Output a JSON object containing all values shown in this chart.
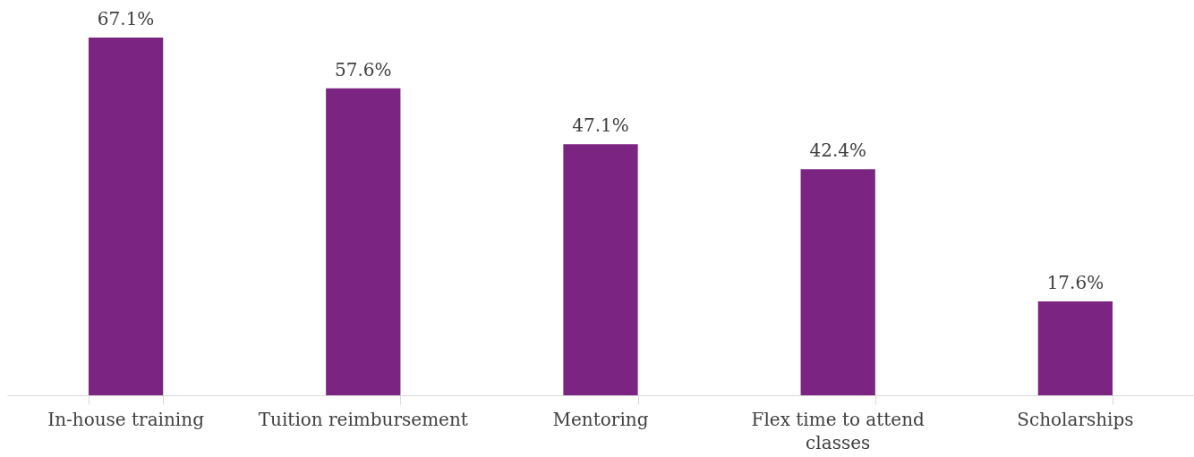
{
  "chart_data": {
    "type": "bar",
    "categories": [
      "In-house training",
      "Tuition reimbursement",
      "Mentoring",
      "Flex time to attend classes",
      "Scholarships"
    ],
    "values": [
      67.1,
      57.6,
      47.1,
      42.4,
      17.6
    ],
    "value_labels": [
      "67.1%",
      "57.6%",
      "47.1%",
      "42.4%",
      "17.6%"
    ],
    "color": "#7b2481"
  }
}
